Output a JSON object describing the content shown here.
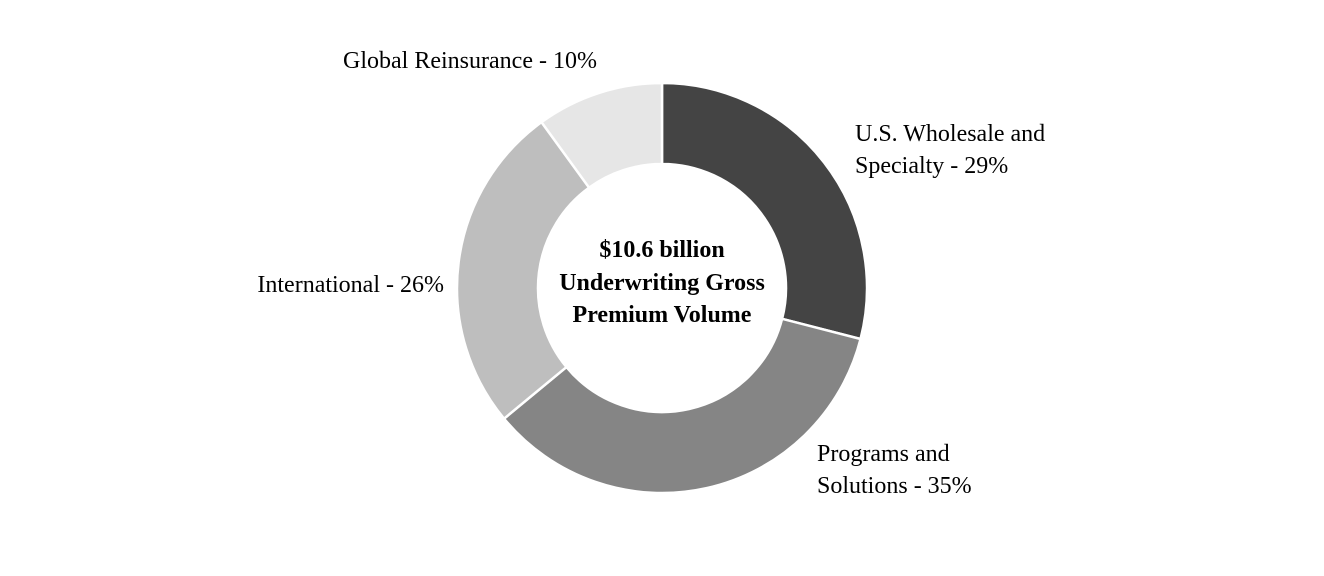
{
  "chart_data": {
    "type": "pie",
    "donut": true,
    "center_label": [
      "$10.6 billion",
      "Underwriting Gross",
      "Premium Volume"
    ],
    "slices": [
      {
        "label_lines": [
          "U.S. Wholesale and",
          "Specialty - 29%"
        ],
        "value": 29,
        "color": "#444444"
      },
      {
        "label_lines": [
          "Programs and",
          "Solutions - 35%"
        ],
        "value": 35,
        "color": "#858585"
      },
      {
        "label_lines": [
          "International - 26%"
        ],
        "value": 26,
        "color": "#bebebe"
      },
      {
        "label_lines": [
          "Global Reinsurance - 10%"
        ],
        "value": 10,
        "color": "#e6e6e6"
      }
    ],
    "legend": "none"
  }
}
